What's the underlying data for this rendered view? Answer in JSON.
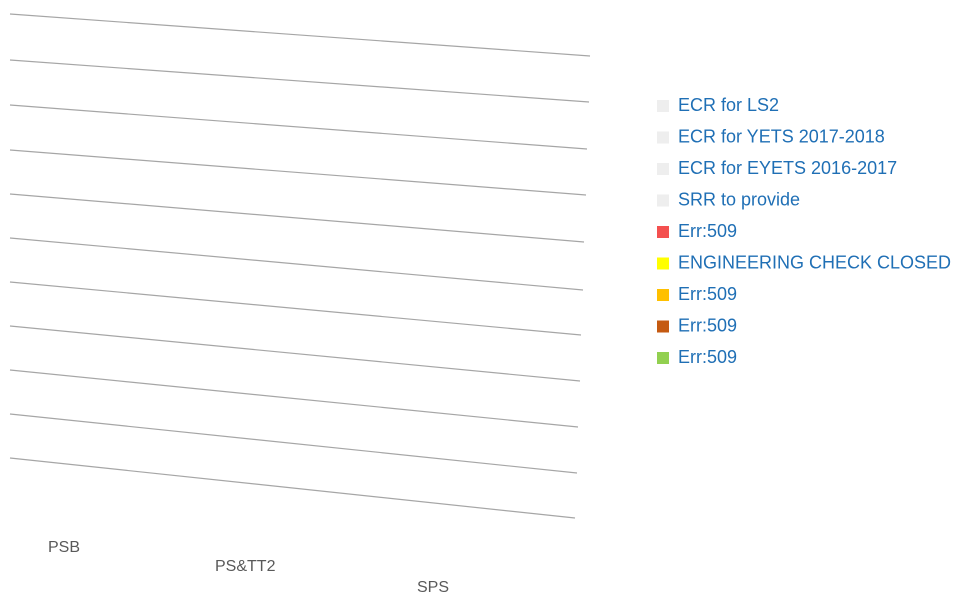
{
  "chart_data": {
    "type": "bar",
    "categories": [
      "PSB",
      "PS&TT2",
      "SPS"
    ],
    "series": [
      {
        "name": "ECR for LS2",
        "color": "#eeeeee"
      },
      {
        "name": "ECR for YETS 2017-2018",
        "color": "#eeeeee"
      },
      {
        "name": "ECR for EYETS 2016-2017",
        "color": "#eeeeee"
      },
      {
        "name": "SRR to provide",
        "color": "#eeeeee"
      },
      {
        "name": "Err:509",
        "color": "#f4504f"
      },
      {
        "name": "ENGINEERING CHECK CLOSED",
        "color": "#ffff00"
      },
      {
        "name": "Err:509",
        "color": "#ffc000"
      },
      {
        "name": "Err:509",
        "color": "#c55a11"
      },
      {
        "name": "Err:509",
        "color": "#92d050"
      }
    ],
    "legend": "right"
  }
}
